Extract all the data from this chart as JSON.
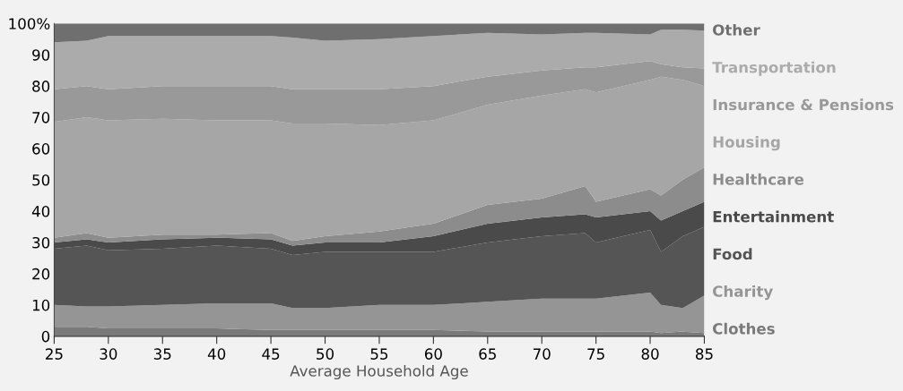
{
  "chart_data": {
    "type": "area",
    "stacked": true,
    "xlabel": "Average Household Age",
    "x": [
      25,
      28,
      30,
      35,
      40,
      45,
      47,
      50,
      55,
      60,
      65,
      70,
      74,
      75,
      80,
      81,
      83,
      85
    ],
    "series": [
      {
        "name": "Clothes",
        "color": "#7a7a7a",
        "values": [
          3,
          3,
          2.5,
          2.5,
          2.5,
          2,
          2,
          2,
          2,
          2,
          1.5,
          1.5,
          1.5,
          1.5,
          1.5,
          1,
          1.5,
          1
        ]
      },
      {
        "name": "Charity",
        "color": "#959595",
        "values": [
          7,
          6.5,
          7,
          7.5,
          8,
          8.5,
          7,
          7,
          8,
          8,
          9.5,
          10.5,
          10.5,
          10.5,
          12.5,
          9,
          7.5,
          12
        ]
      },
      {
        "name": "Food",
        "color": "#555555",
        "values": [
          18,
          19.5,
          18,
          18,
          18.5,
          17.5,
          17,
          18,
          17,
          17,
          19,
          20,
          21,
          18,
          20,
          17,
          23,
          22
        ]
      },
      {
        "name": "Entertainment",
        "color": "#4a4a4a",
        "values": [
          2,
          2,
          2.5,
          3,
          2.5,
          3,
          3,
          3,
          3,
          5,
          6,
          6,
          6,
          8,
          6,
          10,
          8,
          8
        ]
      },
      {
        "name": "Healthcare",
        "color": "#8c8c8c",
        "values": [
          1.5,
          2,
          1.5,
          1.5,
          1,
          2,
          1.5,
          2,
          3.5,
          4,
          6,
          6,
          9,
          5,
          7,
          8,
          10,
          11
        ]
      },
      {
        "name": "Housing",
        "color": "#a6a6a6",
        "values": [
          37,
          37,
          37.5,
          37,
          36.5,
          36,
          37.5,
          36,
          34,
          33,
          32,
          33,
          31,
          35,
          35,
          38,
          32,
          26
        ]
      },
      {
        "name": "Insurance & Pensions",
        "color": "#999999",
        "values": [
          10.5,
          10,
          10,
          10.5,
          11,
          11,
          11,
          11,
          11.5,
          11,
          9,
          8,
          7,
          8,
          6,
          4,
          4,
          5.6
        ]
      },
      {
        "name": "Transportation",
        "color": "#ababab",
        "values": [
          15,
          14.5,
          17,
          16,
          16,
          16,
          16.5,
          15.5,
          16,
          16,
          14,
          11.5,
          11,
          11,
          8.5,
          11,
          12,
          12.1
        ]
      },
      {
        "name": "Other",
        "color": "#6f6f6f",
        "values": [
          6,
          5.5,
          4,
          4,
          4,
          4,
          4.5,
          5.5,
          5,
          4,
          3,
          3.5,
          3,
          3,
          3.5,
          2,
          2,
          2.3
        ]
      }
    ],
    "xlim": [
      25,
      85
    ],
    "xticks": [
      25,
      30,
      35,
      40,
      45,
      50,
      55,
      60,
      65,
      70,
      75,
      80,
      85
    ],
    "ylim": [
      0,
      100
    ],
    "yticks": [
      0,
      10,
      20,
      30,
      40,
      50,
      60,
      70,
      80,
      90,
      {
        "value": 100,
        "label": "100%"
      }
    ],
    "legend": "right",
    "grid": false
  }
}
